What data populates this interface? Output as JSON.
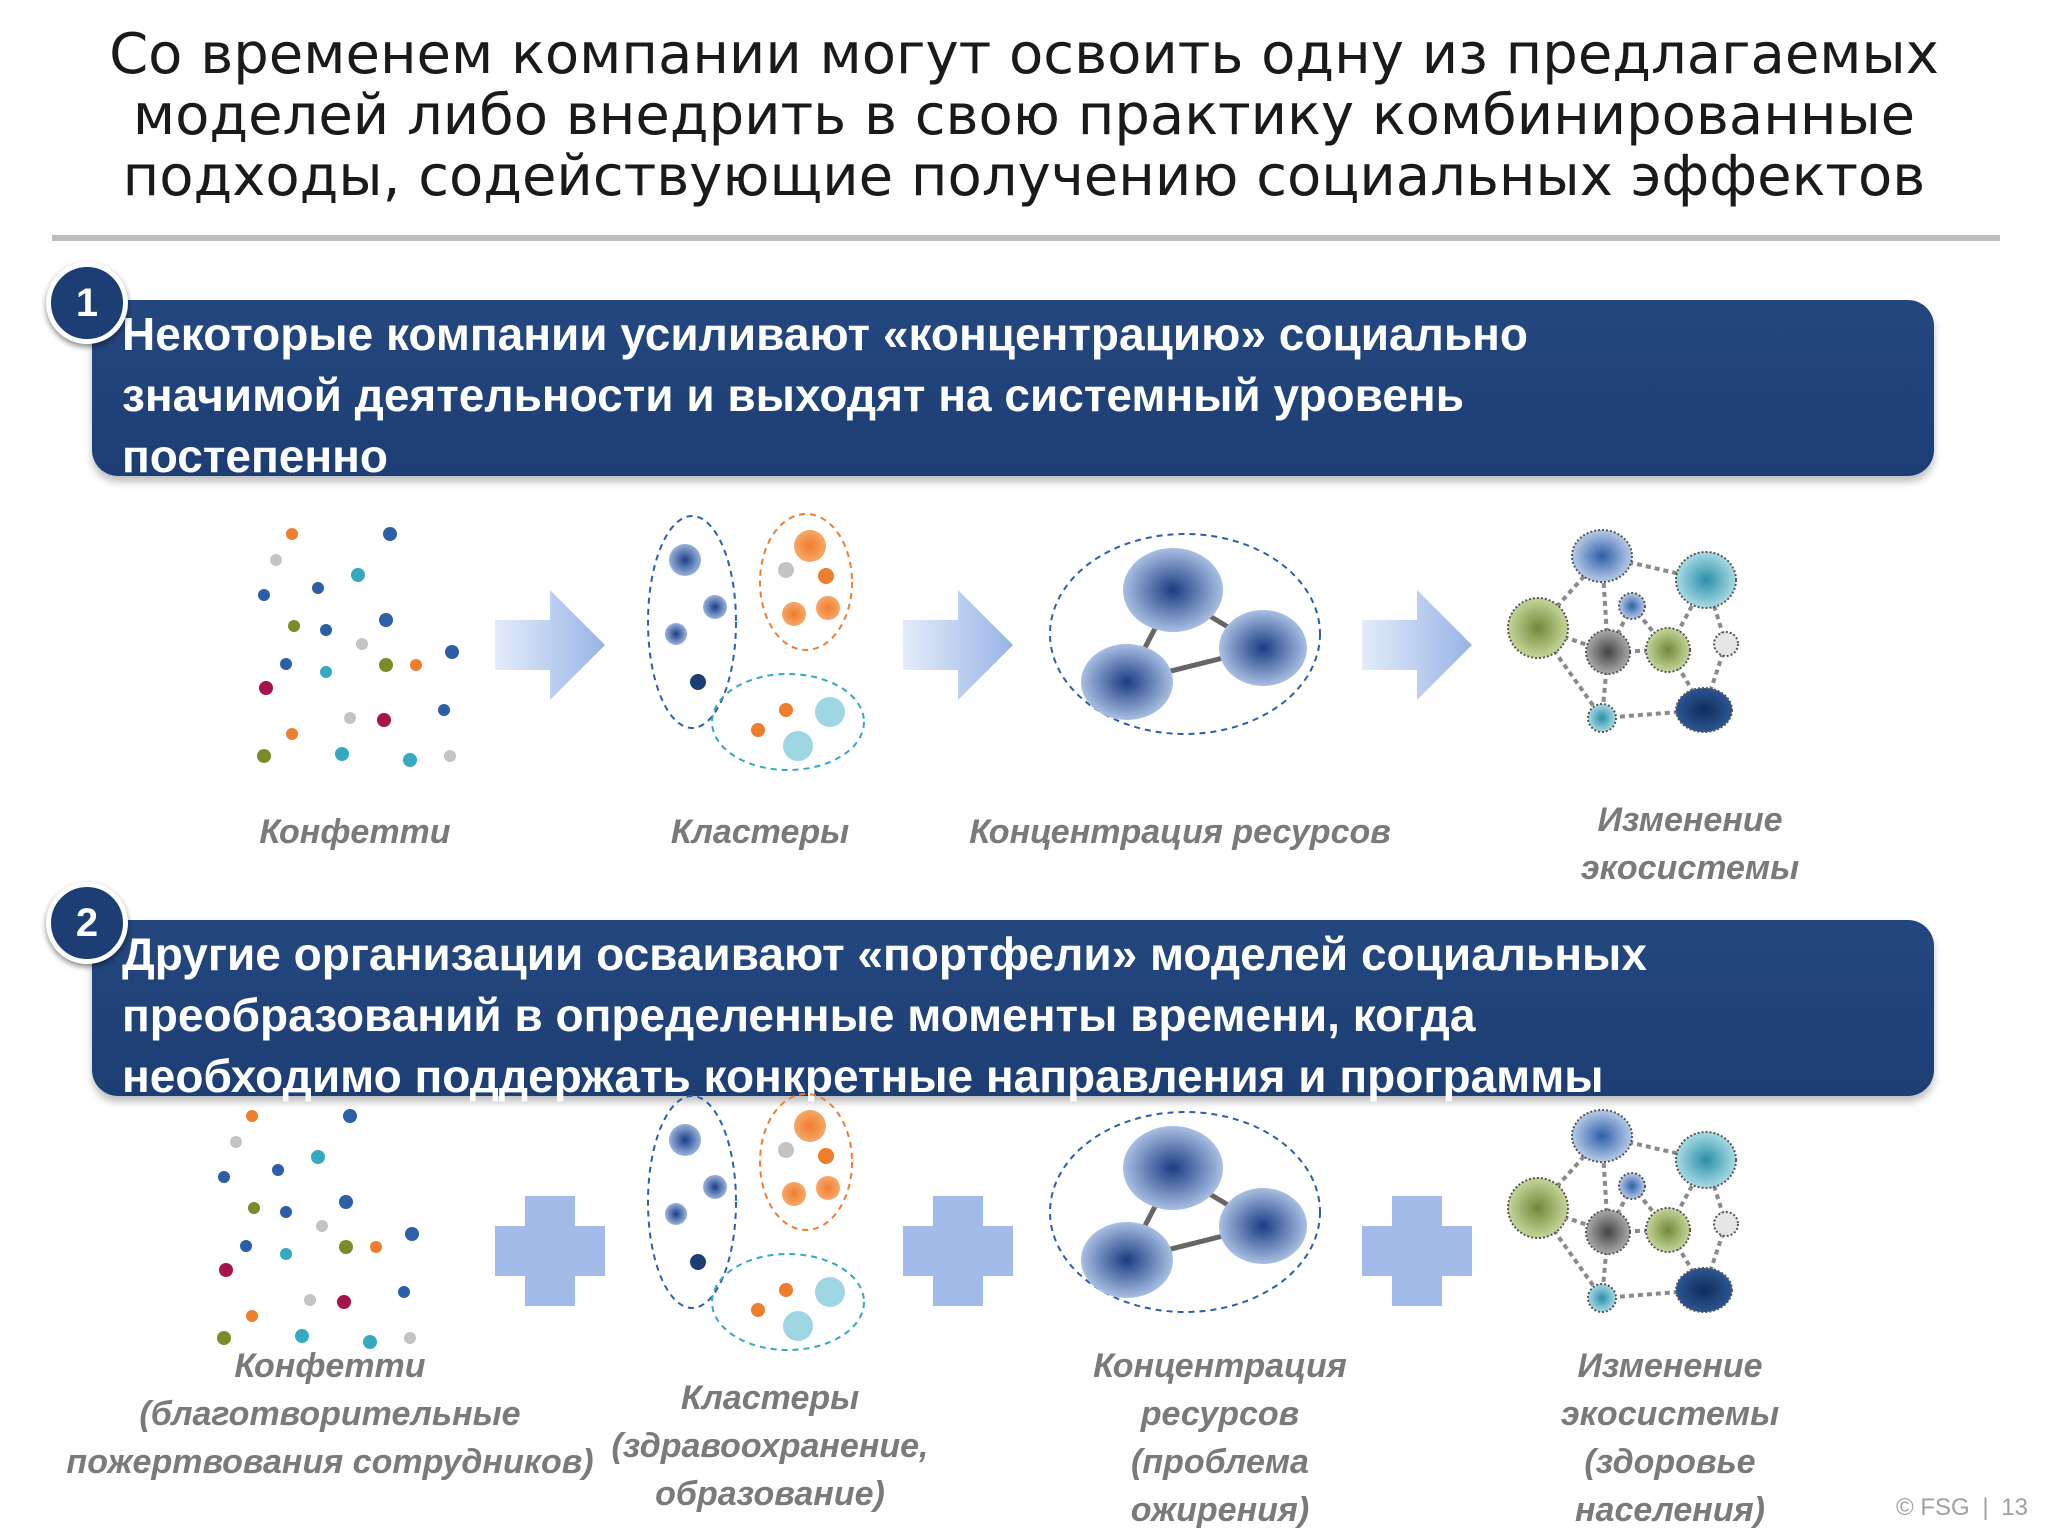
{
  "title": {
    "lines": [
      "Со временем компании могут освоить одну из предлагаемых",
      "моделей либо внедрить в свою практику комбинированные",
      "подходы, содействующие получению социальных эффектов"
    ]
  },
  "section1": {
    "number": "1",
    "lines": [
      "Некоторые компании усиливают «концентрацию» социально",
      "значимой деятельности и выходят на системный уровень",
      "постепенно"
    ],
    "captions": [
      [
        "Конфетти"
      ],
      [
        "Кластеры"
      ],
      [
        "Концентрация ресурсов"
      ],
      [
        "Изменение",
        "экосистемы"
      ]
    ]
  },
  "section2": {
    "number": "2",
    "lines": [
      "Другие организации осваивают «портфели» моделей социальных",
      "преобразований в определенные моменты времени, когда",
      "необходимо поддержать конкретные направления и программы"
    ],
    "captions": [
      [
        "Конфетти",
        "(благотворительные",
        "пожертвования сотрудников)"
      ],
      [
        "Кластеры",
        "(здравоохранение,",
        "образование)"
      ],
      [
        "Концентрация",
        "ресурсов",
        "(проблема",
        "ожирения)"
      ],
      [
        "Изменение",
        "экосистемы",
        "(здоровье",
        "населения)"
      ]
    ]
  },
  "footer": {
    "copyright": "© FSG",
    "separator": "|",
    "page": "13"
  },
  "colors": {
    "band": "#1f4379",
    "dot_orange": "#ef7d2e",
    "dot_blue": "#2d5fa8",
    "dot_teal": "#34a9c1",
    "dot_gray": "#c4c4c4",
    "dot_green": "#7a8c2a",
    "dot_crimson": "#a7134b",
    "arrow": "#a9c0e9",
    "plus": "#a3bbe8"
  },
  "icons": {
    "step_arrow": "right-arrow-icon",
    "step_plus": "plus-icon"
  }
}
